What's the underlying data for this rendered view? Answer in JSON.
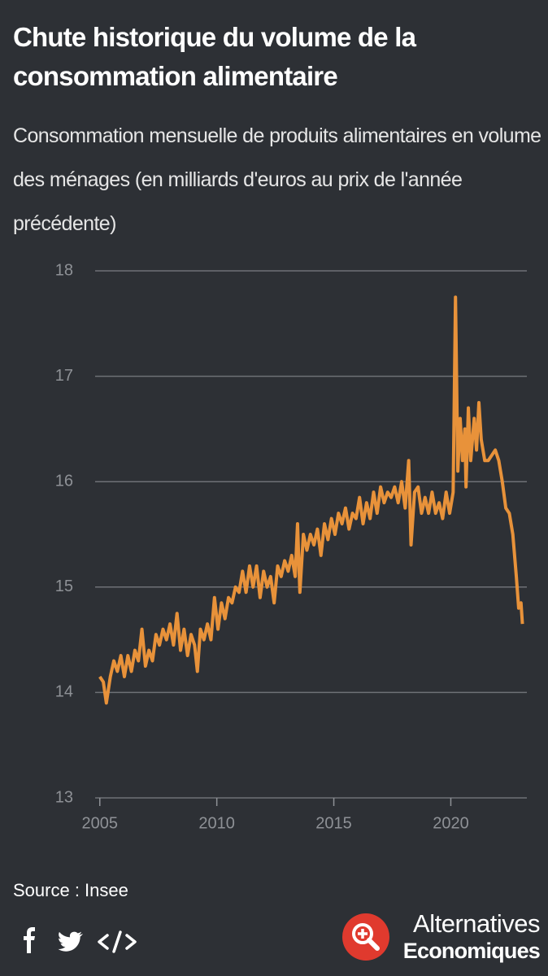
{
  "chart_data": {
    "type": "line",
    "title": "Chute historique du volume de la consommation alimentaire",
    "subtitle": "Consommation mensuelle de produits alimentaires en volume des ménages (en milliards d'euros au prix de l'année précédente)",
    "x": [
      2005.0,
      2005.15,
      2005.28,
      2005.45,
      2005.6,
      2005.75,
      2005.9,
      2006.05,
      2006.2,
      2006.35,
      2006.5,
      2006.65,
      2006.8,
      2006.95,
      2007.1,
      2007.25,
      2007.4,
      2007.55,
      2007.7,
      2007.85,
      2008.0,
      2008.15,
      2008.3,
      2008.45,
      2008.6,
      2008.75,
      2008.9,
      2009.05,
      2009.17,
      2009.3,
      2009.45,
      2009.6,
      2009.75,
      2009.9,
      2010.05,
      2010.2,
      2010.35,
      2010.5,
      2010.65,
      2010.8,
      2010.95,
      2011.1,
      2011.25,
      2011.4,
      2011.55,
      2011.7,
      2011.85,
      2012.0,
      2012.15,
      2012.3,
      2012.45,
      2012.6,
      2012.75,
      2012.9,
      2013.05,
      2013.2,
      2013.35,
      2013.45,
      2013.55,
      2013.7,
      2013.85,
      2014.0,
      2014.15,
      2014.3,
      2014.45,
      2014.6,
      2014.75,
      2014.9,
      2015.05,
      2015.2,
      2015.35,
      2015.5,
      2015.65,
      2015.8,
      2015.95,
      2016.1,
      2016.25,
      2016.4,
      2016.55,
      2016.7,
      2016.85,
      2017.0,
      2017.15,
      2017.3,
      2017.45,
      2017.6,
      2017.75,
      2017.9,
      2018.05,
      2018.2,
      2018.3,
      2018.45,
      2018.6,
      2018.75,
      2018.9,
      2019.05,
      2019.2,
      2019.35,
      2019.5,
      2019.65,
      2019.8,
      2019.95,
      2020.1,
      2020.2,
      2020.3,
      2020.4,
      2020.5,
      2020.6,
      2020.65,
      2020.75,
      2020.85,
      2021.0,
      2021.1,
      2021.2,
      2021.3,
      2021.45,
      2021.6,
      2021.75,
      2021.9,
      2022.05,
      2022.2,
      2022.35,
      2022.5,
      2022.65,
      2022.8,
      2022.9,
      2023.0,
      2023.06
    ],
    "values": [
      14.15,
      14.1,
      13.9,
      14.15,
      14.3,
      14.2,
      14.35,
      14.15,
      14.35,
      14.2,
      14.4,
      14.3,
      14.6,
      14.25,
      14.4,
      14.3,
      14.55,
      14.45,
      14.6,
      14.5,
      14.65,
      14.45,
      14.75,
      14.4,
      14.6,
      14.35,
      14.55,
      14.45,
      14.2,
      14.6,
      14.5,
      14.65,
      14.5,
      14.9,
      14.6,
      14.85,
      14.7,
      14.9,
      14.85,
      15.0,
      14.95,
      15.15,
      14.95,
      15.2,
      15.0,
      15.2,
      14.9,
      15.15,
      15.0,
      15.1,
      14.85,
      15.2,
      15.1,
      15.25,
      15.15,
      15.3,
      15.1,
      15.6,
      14.95,
      15.5,
      15.35,
      15.5,
      15.4,
      15.55,
      15.3,
      15.6,
      15.45,
      15.65,
      15.5,
      15.7,
      15.6,
      15.75,
      15.55,
      15.7,
      15.65,
      15.85,
      15.6,
      15.8,
      15.65,
      15.9,
      15.7,
      15.95,
      15.8,
      15.9,
      15.85,
      15.95,
      15.8,
      16.0,
      15.75,
      16.2,
      15.4,
      15.9,
      15.95,
      15.7,
      15.85,
      15.7,
      15.9,
      15.7,
      15.8,
      15.65,
      15.9,
      15.7,
      15.9,
      17.75,
      16.1,
      16.6,
      16.2,
      16.5,
      15.95,
      16.7,
      16.2,
      16.6,
      16.3,
      16.75,
      16.4,
      16.2,
      16.2,
      16.25,
      16.3,
      16.2,
      16.0,
      15.75,
      15.7,
      15.5,
      15.1,
      14.8,
      14.85,
      14.65
    ],
    "color": "#e8923a",
    "xlim": [
      2004.8,
      2023.25
    ],
    "xticks": [
      2005,
      2010,
      2015,
      2020
    ],
    "ylim": [
      13,
      18
    ],
    "yticks": [
      13,
      14,
      15,
      16,
      17,
      18
    ],
    "grid": true,
    "source": "Source : Insee"
  },
  "logo": {
    "line1": "Alternatives",
    "line2": "Economiques"
  }
}
